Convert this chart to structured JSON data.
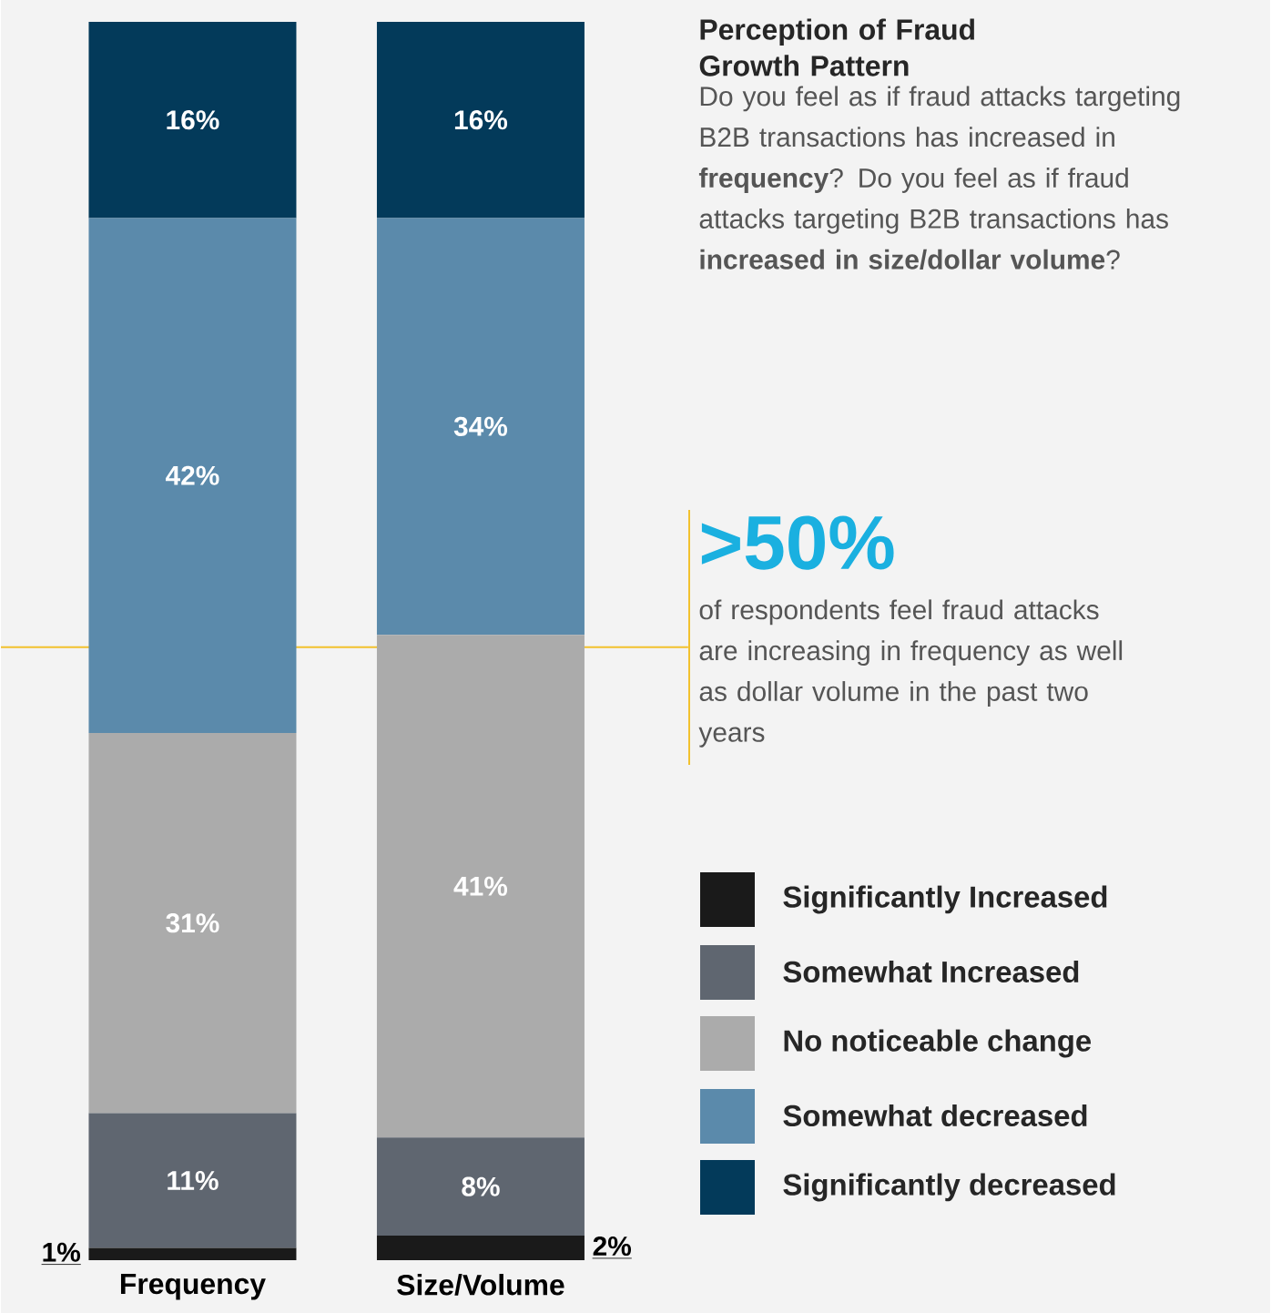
{
  "chart_data": {
    "type": "bar",
    "stacked": true,
    "title": "Perception of Fraud Growth Pattern",
    "subtitle": "Do you feel as if fraud attacks targeting B2B transactions has increased in **frequency**? Do you feel as if fraud attacks targeting B2B transactions has **increased in size/dollar volume**?",
    "categories": [
      "Frequency",
      "Size/Volume"
    ],
    "series": [
      {
        "name": "Significantly Increased",
        "color": "#1a1a1a",
        "values": [
          1,
          2
        ],
        "value_labels": [
          "1%",
          "2%"
        ]
      },
      {
        "name": "Somewhat Increased",
        "color": "#5f6670",
        "values": [
          11,
          8
        ],
        "value_labels": [
          "11%",
          "8%"
        ]
      },
      {
        "name": "No noticeable change",
        "color": "#ababab",
        "values": [
          31,
          41
        ],
        "value_labels": [
          "31%",
          "41%"
        ]
      },
      {
        "name": "Somewhat decreased",
        "color": "#5b8aab",
        "values": [
          42,
          34
        ],
        "value_labels": [
          "42%",
          "34%"
        ]
      },
      {
        "name": "Significantly decreased",
        "color": "#033a5a",
        "values": [
          16,
          16
        ],
        "value_labels": [
          "16%",
          "16%"
        ]
      }
    ],
    "tick_labels": "x",
    "legend": "right",
    "ref_lines": [
      {
        "axis": "y",
        "value": 50,
        "color": "#f2c12e",
        "label": ">50%"
      }
    ],
    "annotations": [
      "of respondents feel fraud attacks are increasing in frequency as well as dollar volume in the past two years"
    ]
  }
}
